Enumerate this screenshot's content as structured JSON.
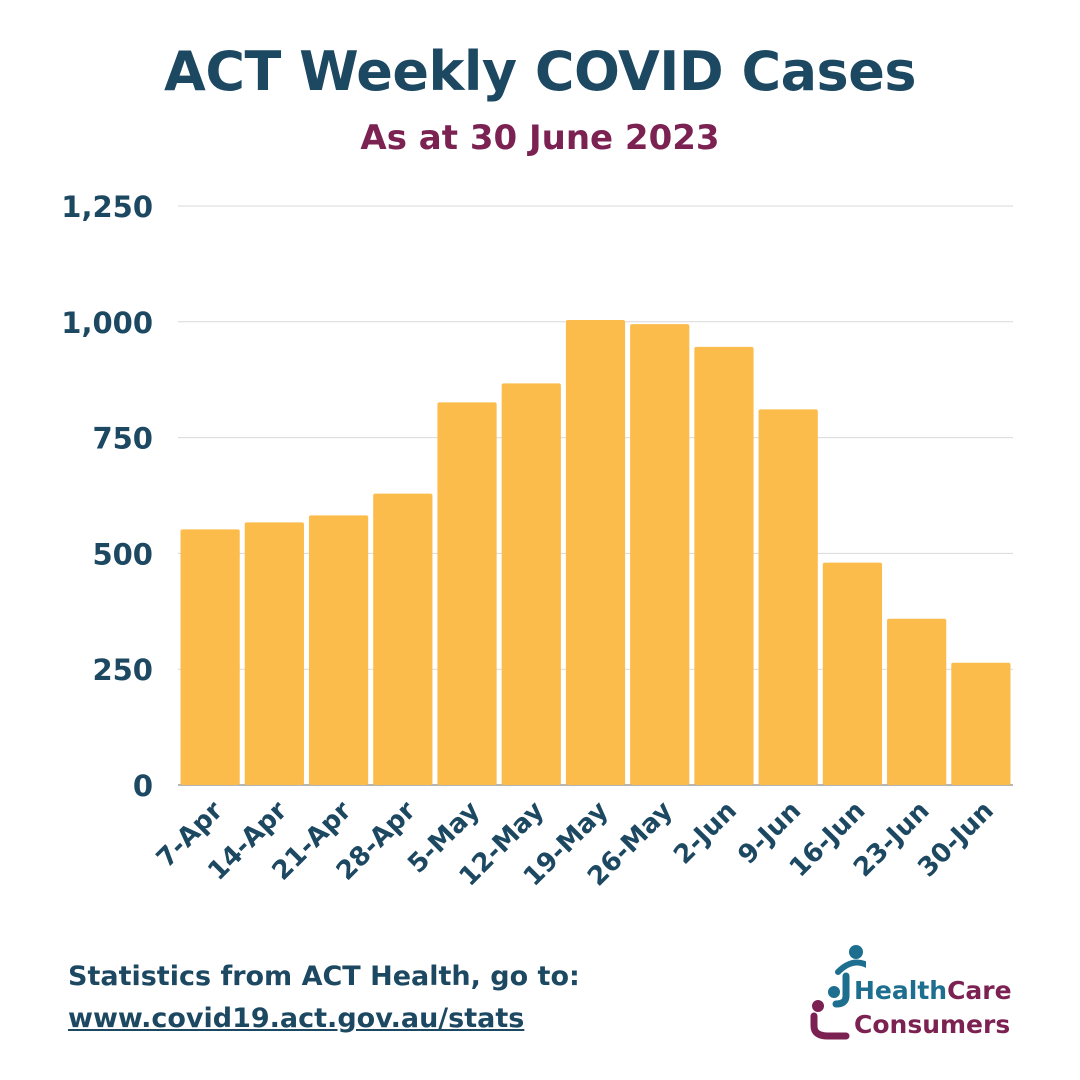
{
  "chart_data": {
    "type": "bar",
    "title": "ACT Weekly COVID Cases",
    "subtitle": "As at 30 June 2023",
    "xlabel": "",
    "ylabel": "",
    "categories": [
      "7-Apr",
      "14-Apr",
      "21-Apr",
      "28-Apr",
      "5-May",
      "12-May",
      "19-May",
      "26-May",
      "2-Jun",
      "9-Jun",
      "16-Jun",
      "23-Jun",
      "30-Jun"
    ],
    "values": [
      552,
      567,
      582,
      629,
      826,
      867,
      1004,
      995,
      946,
      811,
      480,
      359,
      264
    ],
    "ylim": [
      0,
      1250
    ],
    "yticks": [
      0,
      250,
      500,
      750,
      1000,
      1250
    ],
    "ytick_labels": [
      "0",
      "250",
      "500",
      "750",
      "1,000",
      "1,250"
    ],
    "grid": true,
    "legend": "none",
    "bar_color": "#fbbc4c"
  },
  "colors": {
    "title": "#1d4862",
    "subtitle": "#7b2252",
    "gridline": "#d9d9d9",
    "axis": "#9e9e9e"
  },
  "footer": {
    "line1": "Statistics from ACT Health, go to:",
    "link": "www.covid19.act.gov.au/stats"
  },
  "logo": {
    "health": "Health",
    "care": "Care",
    "consumers": "Consumers",
    "icon": "healthcare-consumers-logo-icon"
  }
}
